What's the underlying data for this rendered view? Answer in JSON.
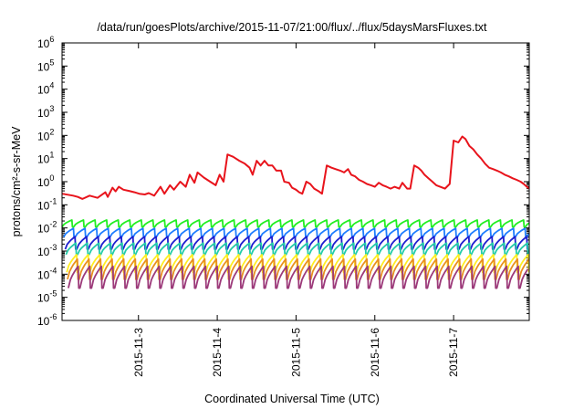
{
  "chart_data": {
    "type": "line",
    "title": "/data/run/goesPlots/archive/2015-11-07/21:00/flux/../flux/5daysMarsFluxes.txt",
    "xlabel": "Coordinated Universal Time (UTC)",
    "ylabel": "protons/cm²-s-sr-MeV",
    "yscale": "log",
    "ylim": [
      1e-06,
      1000000.0
    ],
    "xlim": [
      0,
      5.93
    ],
    "x_ticks": [
      {
        "x": 0.97,
        "label": "2015-11-3"
      },
      {
        "x": 1.97,
        "label": "2015-11-4"
      },
      {
        "x": 2.97,
        "label": "2015-11-5"
      },
      {
        "x": 3.97,
        "label": "2015-11-6"
      },
      {
        "x": 4.97,
        "label": "2015-11-7"
      }
    ],
    "y_ticks": [
      {
        "exp": -6,
        "label": "10",
        "sup": "-6"
      },
      {
        "exp": -5,
        "label": "10",
        "sup": "-5"
      },
      {
        "exp": -4,
        "label": "10",
        "sup": "-4"
      },
      {
        "exp": -3,
        "label": "10",
        "sup": "-3"
      },
      {
        "exp": -2,
        "label": "10",
        "sup": "-2"
      },
      {
        "exp": -1,
        "label": "10",
        "sup": "-1"
      },
      {
        "exp": 0,
        "label": "10",
        "sup": "0"
      },
      {
        "exp": 1,
        "label": "10",
        "sup": "1"
      },
      {
        "exp": 2,
        "label": "10",
        "sup": "2"
      },
      {
        "exp": 3,
        "label": "10",
        "sup": "3"
      },
      {
        "exp": 4,
        "label": "10",
        "sup": "4"
      },
      {
        "exp": 5,
        "label": "10",
        "sup": "5"
      },
      {
        "exp": 6,
        "label": "10",
        "sup": "6"
      }
    ],
    "grid": false,
    "legend": "none",
    "series": [
      {
        "color": "#e8141c",
        "x": [
          0.0,
          0.14,
          0.2,
          0.26,
          0.35,
          0.45,
          0.55,
          0.58,
          0.64,
          0.68,
          0.72,
          0.78,
          0.85,
          0.92,
          0.98,
          1.05,
          1.1,
          1.17,
          1.25,
          1.3,
          1.37,
          1.42,
          1.5,
          1.57,
          1.62,
          1.68,
          1.72,
          1.8,
          1.88,
          1.95,
          2.0,
          2.05,
          2.1,
          2.17,
          2.25,
          2.32,
          2.38,
          2.42,
          2.47,
          2.52,
          2.57,
          2.62,
          2.67,
          2.72,
          2.78,
          2.82,
          2.88,
          2.92,
          2.97,
          3.01,
          3.05,
          3.1,
          3.15,
          3.2,
          3.25,
          3.3,
          3.36,
          3.42,
          3.47,
          3.53,
          3.58,
          3.63,
          3.67,
          3.72,
          3.77,
          3.82,
          3.87,
          3.92,
          3.97,
          4.02,
          4.07,
          4.12,
          4.17,
          4.22,
          4.28,
          4.32,
          4.38,
          4.42,
          4.47,
          4.52,
          4.56,
          4.6,
          4.65,
          4.7,
          4.75,
          4.8,
          4.86,
          4.92,
          4.97,
          5.03,
          5.08,
          5.12,
          5.17,
          5.22,
          5.27,
          5.32,
          5.37,
          5.42,
          5.47,
          5.52,
          5.57,
          5.62,
          5.67,
          5.72,
          5.77,
          5.82,
          5.86,
          5.9,
          5.93
        ],
        "values": [
          0.3,
          0.25,
          0.22,
          0.18,
          0.25,
          0.2,
          0.35,
          0.22,
          0.55,
          0.38,
          0.6,
          0.45,
          0.4,
          0.35,
          0.3,
          0.28,
          0.32,
          0.25,
          0.6,
          0.3,
          0.7,
          0.45,
          1.0,
          0.6,
          2.0,
          0.9,
          2.5,
          1.5,
          1.0,
          0.7,
          2.0,
          1.0,
          15,
          12,
          8,
          6,
          4,
          2,
          8,
          5,
          8,
          5,
          5,
          3,
          3,
          1,
          0.9,
          0.55,
          0.45,
          0.35,
          0.3,
          1.0,
          0.8,
          0.5,
          0.4,
          0.3,
          5,
          4,
          3.5,
          3,
          2.5,
          3.5,
          2,
          1.7,
          1.2,
          1.0,
          0.8,
          0.7,
          0.6,
          0.9,
          0.7,
          0.6,
          0.5,
          0.6,
          0.5,
          0.9,
          0.5,
          0.5,
          5,
          4,
          3,
          2,
          1.4,
          1,
          0.7,
          0.6,
          0.5,
          0.8,
          60,
          50,
          90,
          70,
          35,
          25,
          15,
          10,
          6,
          4,
          3.5,
          3,
          2.5,
          2,
          1.7,
          1.4,
          1.2,
          1.0,
          0.8,
          0.6,
          0.5
        ],
        "note": ""
      },
      {
        "color": "#22ee22",
        "baseline": 0.022,
        "dip": 0.011,
        "period": 0.147,
        "start": 0.0
      },
      {
        "color": "#1e7dff",
        "baseline": 0.0095,
        "dip": 0.004,
        "period": 0.147,
        "start": 0.02
      },
      {
        "color": "#1e1ecf",
        "baseline": 0.0042,
        "dip": 0.0012,
        "period": 0.147,
        "start": 0.04
      },
      {
        "color": "#22ccaa",
        "baseline": 0.0022,
        "dip": 0.0007,
        "period": 0.147,
        "start": 0.05
      },
      {
        "color": "#ffee22",
        "baseline": 0.0007,
        "dip": 0.00012,
        "period": 0.147,
        "start": 0.06
      },
      {
        "color": "#e89020",
        "baseline": 0.00045,
        "dip": 6e-05,
        "period": 0.147,
        "start": 0.07
      },
      {
        "color": "#9c3a7a",
        "baseline": 0.00022,
        "dip": 2.5e-05,
        "period": 0.147,
        "start": 0.08
      }
    ]
  }
}
